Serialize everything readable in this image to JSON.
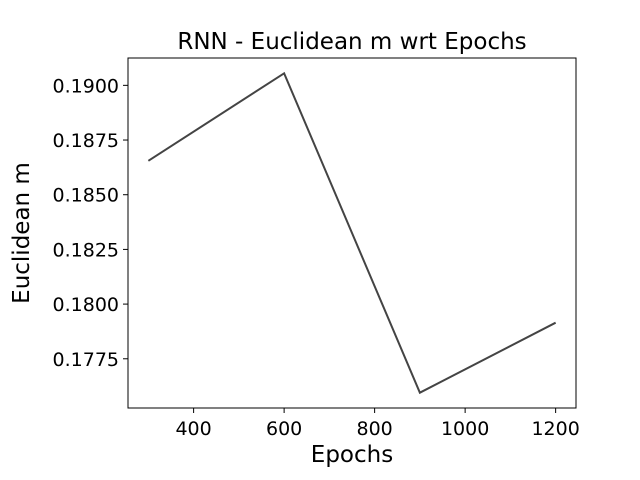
{
  "chart_data": {
    "type": "line",
    "title": "RNN - Euclidean m wrt Epochs",
    "xlabel": "Epochs",
    "ylabel": "Euclidean m",
    "x": [
      300,
      600,
      900,
      1200
    ],
    "series": [
      {
        "values": [
          0.18655,
          0.19055,
          0.17595,
          0.17915
        ],
        "color": "#444444"
      }
    ],
    "xlim": [
      255,
      1245
    ],
    "ylim": [
      0.17525,
      0.19125
    ],
    "xticks": [
      400,
      600,
      800,
      1000,
      1200
    ],
    "xtick_labels": [
      "400",
      "600",
      "800",
      "1000",
      "1200"
    ],
    "yticks": [
      0.1775,
      0.18,
      0.1825,
      0.185,
      0.1875,
      0.19
    ],
    "ytick_labels": [
      "0.1775",
      "0.1800",
      "0.1825",
      "0.1850",
      "0.1875",
      "0.1900"
    ],
    "grid": false,
    "legend": "none"
  }
}
